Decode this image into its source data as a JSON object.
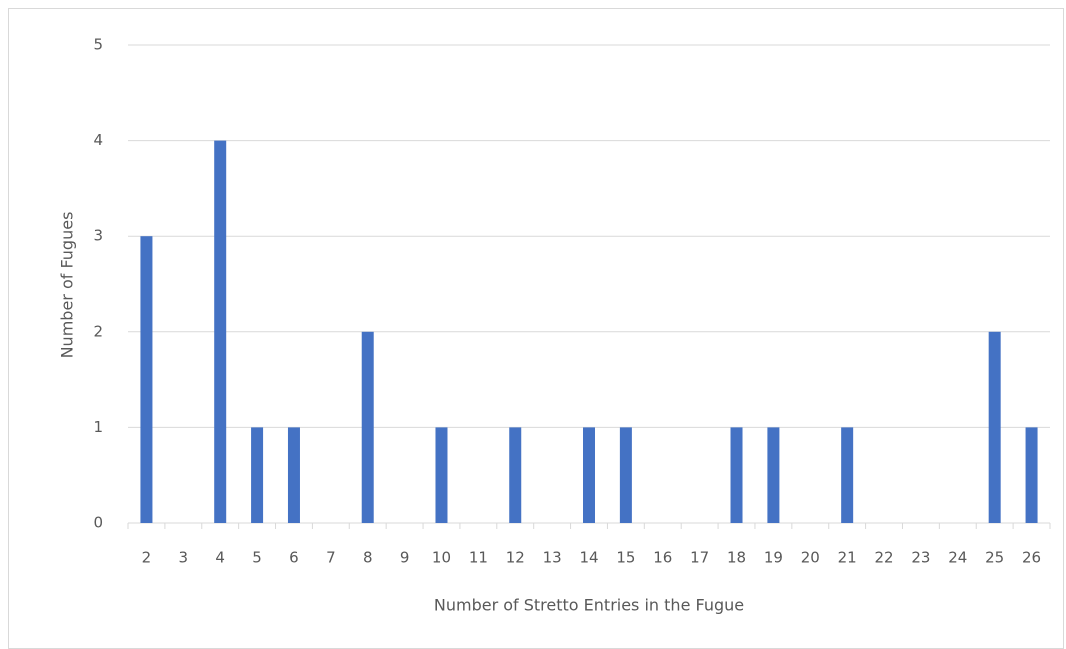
{
  "chart_data": {
    "type": "bar",
    "x_label": "Number  of Stretto  Entries in the Fugue",
    "y_label": "Number  of Fugues",
    "categories": [
      "2",
      "3",
      "4",
      "5",
      "6",
      "7",
      "8",
      "9",
      "10",
      "11",
      "12",
      "13",
      "14",
      "15",
      "16",
      "17",
      "18",
      "19",
      "20",
      "21",
      "22",
      "23",
      "24",
      "25",
      "26"
    ],
    "values": [
      3,
      0,
      4,
      1,
      1,
      0,
      2,
      0,
      1,
      0,
      1,
      0,
      1,
      1,
      0,
      0,
      1,
      1,
      0,
      1,
      0,
      0,
      0,
      2,
      1
    ],
    "color": "#4472c4",
    "ylim": [
      0,
      5
    ],
    "yticks": [
      0,
      1,
      2,
      3,
      4,
      5
    ],
    "grid": true
  }
}
